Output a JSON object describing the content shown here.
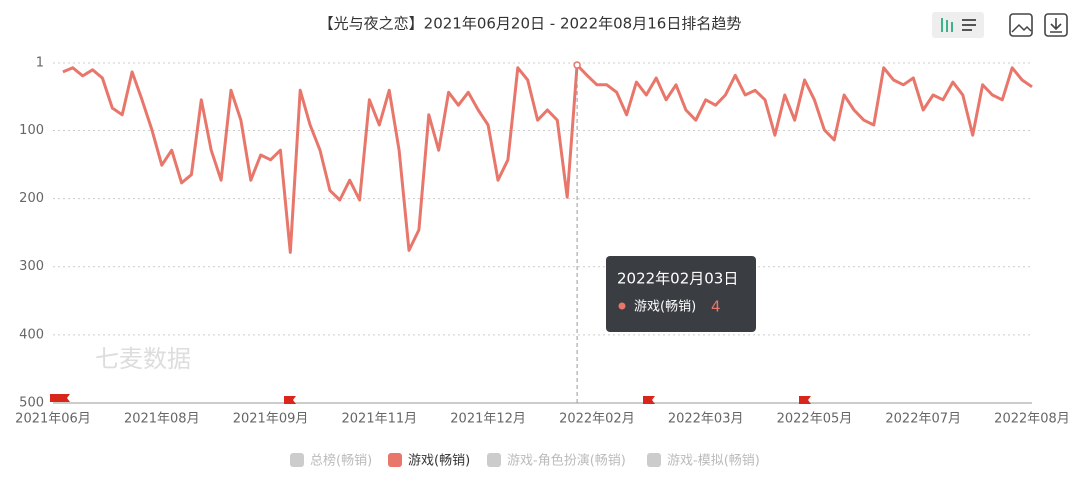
{
  "chart_data": {
    "type": "line",
    "title": "【光与夜之恋】2021年06月20日 - 2022年08月16日排名趋势",
    "watermark": "七麦数据",
    "categories": [
      "2021年06月",
      null,
      null,
      null,
      null,
      null,
      null,
      null,
      null,
      null,
      null,
      "2021年08月",
      null,
      null,
      null,
      null,
      null,
      null,
      null,
      null,
      null,
      null,
      "2021年09月",
      null,
      null,
      null,
      null,
      null,
      null,
      null,
      null,
      null,
      null,
      "2021年11月",
      null,
      null,
      null,
      null,
      null,
      null,
      null,
      null,
      null,
      null,
      "2021年12月",
      null,
      null,
      null,
      null,
      null,
      null,
      null,
      null,
      null,
      null,
      "2022年02月",
      null,
      null,
      null,
      null,
      null,
      null,
      null,
      null,
      null,
      null,
      "2022年03月",
      null,
      null,
      null,
      null,
      null,
      null,
      null,
      null,
      null,
      null,
      "2022年05月",
      null,
      null,
      null,
      null,
      null,
      null,
      null,
      null,
      null,
      null,
      "2022年07月",
      null,
      null,
      null,
      null,
      null,
      null,
      null,
      null,
      null,
      null,
      "2022年08月"
    ],
    "series": [
      {
        "name": "游戏(畅销)",
        "color": "#e8766a",
        "values": [
          null,
          14,
          8,
          20,
          11,
          23,
          67,
          77,
          14,
          55,
          99,
          151,
          129,
          177,
          165,
          55,
          129,
          173,
          41,
          85,
          173,
          136,
          143,
          129,
          279,
          41,
          92,
          129,
          188,
          202,
          173,
          202,
          55,
          92,
          41,
          129,
          276,
          246,
          77,
          129,
          44,
          63,
          44,
          70,
          92,
          173,
          143,
          8,
          26,
          85,
          70,
          85,
          198,
          4,
          19,
          33,
          33,
          44,
          77,
          29,
          48,
          23,
          55,
          33,
          70,
          85,
          55,
          63,
          48,
          19,
          48,
          41,
          55,
          107,
          48,
          85,
          26,
          55,
          99,
          114,
          48,
          70,
          85,
          92,
          8,
          26,
          33,
          23,
          70,
          48,
          55,
          29,
          48,
          107,
          33,
          48,
          55,
          8,
          26,
          36
        ]
      }
    ],
    "legend": [
      "总榜(畅销)",
      "游戏(畅销)",
      "游戏-角色扮演(畅销)",
      "游戏-模拟(畅销)"
    ],
    "legend_inactive_color": "#ccc",
    "ylim": [
      500,
      1
    ],
    "yticks": [
      1,
      100,
      200,
      300,
      400,
      500
    ],
    "grid": true,
    "tooltip": {
      "title": "2022年02月03日",
      "index": 53
    }
  }
}
